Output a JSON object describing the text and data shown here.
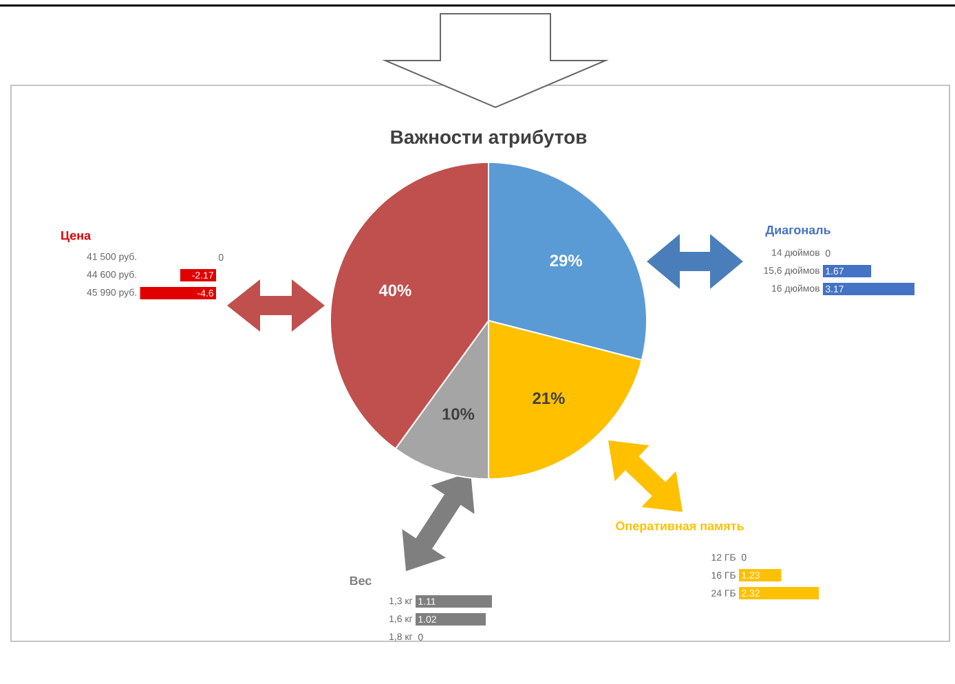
{
  "chart_data": [
    {
      "type": "pie",
      "title": "Важности атрибутов",
      "categories": [
        null,
        null,
        null,
        null
      ],
      "values": [
        29,
        21,
        10,
        40
      ],
      "colors": [
        "#5b9bd5",
        "#ffc000",
        "#a5a5a5",
        "#c0504d"
      ],
      "value_labels": [
        "29%",
        "21%",
        "10%",
        "40%"
      ]
    },
    {
      "type": "bar",
      "orientation": "horizontal",
      "title": "Цена",
      "categories": [
        "41 500 руб.",
        "44 600 руб.",
        "45 990 руб."
      ],
      "values": [
        0,
        -2.17,
        -4.6
      ],
      "color": "#e00000",
      "data_labels": true
    },
    {
      "type": "bar",
      "orientation": "horizontal",
      "title": "Диагональ",
      "categories": [
        "14 дюймов",
        "15,6 дюймов",
        "16 дюймов"
      ],
      "values": [
        0,
        1.67,
        3.17
      ],
      "color": "#4472c4",
      "data_labels": true
    },
    {
      "type": "bar",
      "orientation": "horizontal",
      "title": "Оперативная память",
      "categories": [
        "12 ГБ",
        "16 ГБ",
        "24 ГБ"
      ],
      "values": [
        0,
        1.23,
        2.32
      ],
      "color": "#ffc000",
      "data_labels": true
    },
    {
      "type": "bar",
      "orientation": "horizontal",
      "title": "Вес",
      "categories": [
        "1,3 кг",
        "1,6 кг",
        "1,8 кг"
      ],
      "values": [
        1.11,
        1.02,
        0
      ],
      "color": "#7f7f7f",
      "data_labels": true
    }
  ]
}
